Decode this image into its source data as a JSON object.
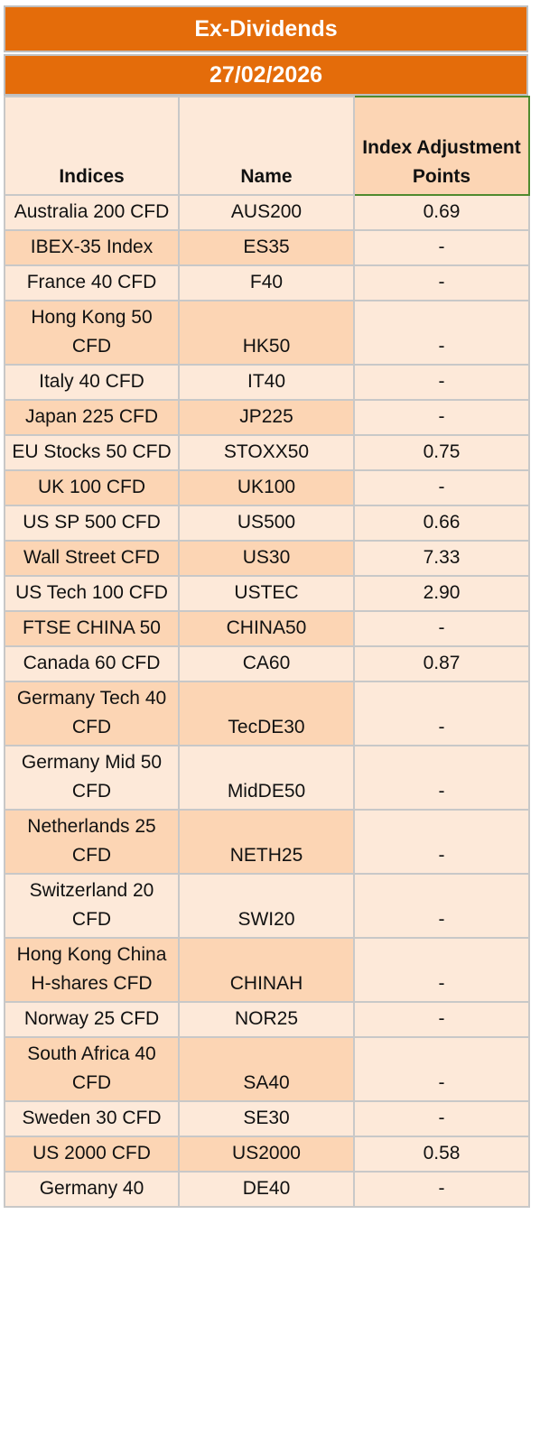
{
  "title": "Ex-Dividends",
  "date": "27/02/2026",
  "headers": {
    "indices": "Indices",
    "name": "Name",
    "adjustment": "Index Adjustment Points"
  },
  "rows": [
    {
      "index": "Australia 200 CFD",
      "name": "AUS200",
      "points": "0.69"
    },
    {
      "index": "IBEX-35 Index",
      "name": "ES35",
      "points": "-"
    },
    {
      "index": "France 40 CFD",
      "name": "F40",
      "points": "-"
    },
    {
      "index": "Hong Kong 50 CFD",
      "name": "HK50",
      "points": "-"
    },
    {
      "index": "Italy 40 CFD",
      "name": "IT40",
      "points": "-"
    },
    {
      "index": "Japan 225 CFD",
      "name": "JP225",
      "points": "-"
    },
    {
      "index": "EU Stocks 50 CFD",
      "name": "STOXX50",
      "points": "0.75"
    },
    {
      "index": "UK 100 CFD",
      "name": "UK100",
      "points": "-"
    },
    {
      "index": "US SP 500 CFD",
      "name": "US500",
      "points": "0.66"
    },
    {
      "index": "Wall Street CFD",
      "name": "US30",
      "points": "7.33"
    },
    {
      "index": "US Tech 100 CFD",
      "name": "USTEC",
      "points": "2.90"
    },
    {
      "index": "FTSE CHINA 50",
      "name": "CHINA50",
      "points": "-"
    },
    {
      "index": "Canada 60 CFD",
      "name": "CA60",
      "points": "0.87"
    },
    {
      "index": "Germany Tech 40 CFD",
      "name": "TecDE30",
      "points": "-"
    },
    {
      "index": "Germany Mid 50 CFD",
      "name": "MidDE50",
      "points": "-"
    },
    {
      "index": "Netherlands 25 CFD",
      "name": "NETH25",
      "points": "-"
    },
    {
      "index": "Switzerland 20 CFD",
      "name": "SWI20",
      "points": "-"
    },
    {
      "index": "Hong Kong China H-shares CFD",
      "name": "CHINAH",
      "points": "-"
    },
    {
      "index": "Norway 25 CFD",
      "name": "NOR25",
      "points": "-"
    },
    {
      "index": "South Africa 40 CFD",
      "name": "SA40",
      "points": "-"
    },
    {
      "index": "Sweden 30 CFD",
      "name": "SE30",
      "points": "-"
    },
    {
      "index": "US 2000 CFD",
      "name": "US2000",
      "points": "0.58"
    },
    {
      "index": "Germany 40",
      "name": "DE40",
      "points": "-"
    }
  ]
}
